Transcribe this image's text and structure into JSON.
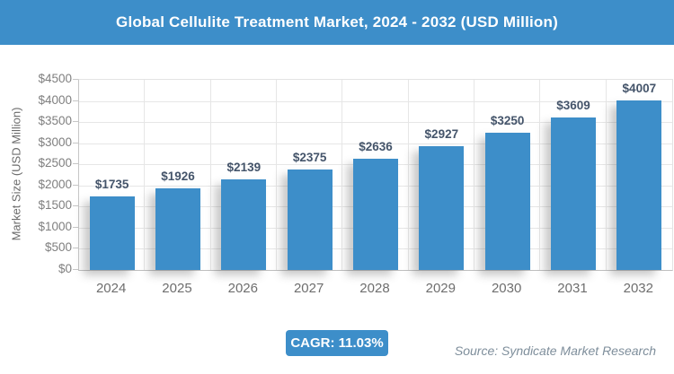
{
  "header": {
    "title": "Global Cellulite Treatment Market, 2024 - 2032 (USD Million)",
    "bg_color": "#3d8ec9",
    "text_color": "#ffffff"
  },
  "chart_data": {
    "type": "bar",
    "title": "Global Cellulite Treatment Market, 2024 - 2032 (USD Million)",
    "xlabel": "",
    "ylabel": "Market Size (USD Million)",
    "categories": [
      "2024",
      "2025",
      "2026",
      "2027",
      "2028",
      "2029",
      "2030",
      "2031",
      "2032"
    ],
    "values": [
      1735,
      1926,
      2139,
      2375,
      2636,
      2927,
      3250,
      3609,
      4007
    ],
    "value_labels": [
      "$1735",
      "$1926",
      "$2139",
      "$2375",
      "$2636",
      "$2927",
      "$3250",
      "$3609",
      "$4007"
    ],
    "ylim": [
      0,
      4500
    ],
    "ytick_step": 500,
    "ytick_values": [
      0,
      500,
      1000,
      1500,
      2000,
      2500,
      3000,
      3500,
      4000,
      4500
    ],
    "ytick_labels": [
      "$0",
      "$500",
      "$1000",
      "$1500",
      "$2000",
      "$2500",
      "$3000",
      "$3500",
      "$4000",
      "$4500"
    ],
    "grid": "on",
    "legend": "none",
    "bar_color": "#3d8ec9",
    "value_label_color": "#44546a"
  },
  "footer": {
    "cagr_label": "CAGR: 11.03%",
    "badge_color": "#3d8ec9",
    "source": "Source: Syndicate Market Research"
  }
}
